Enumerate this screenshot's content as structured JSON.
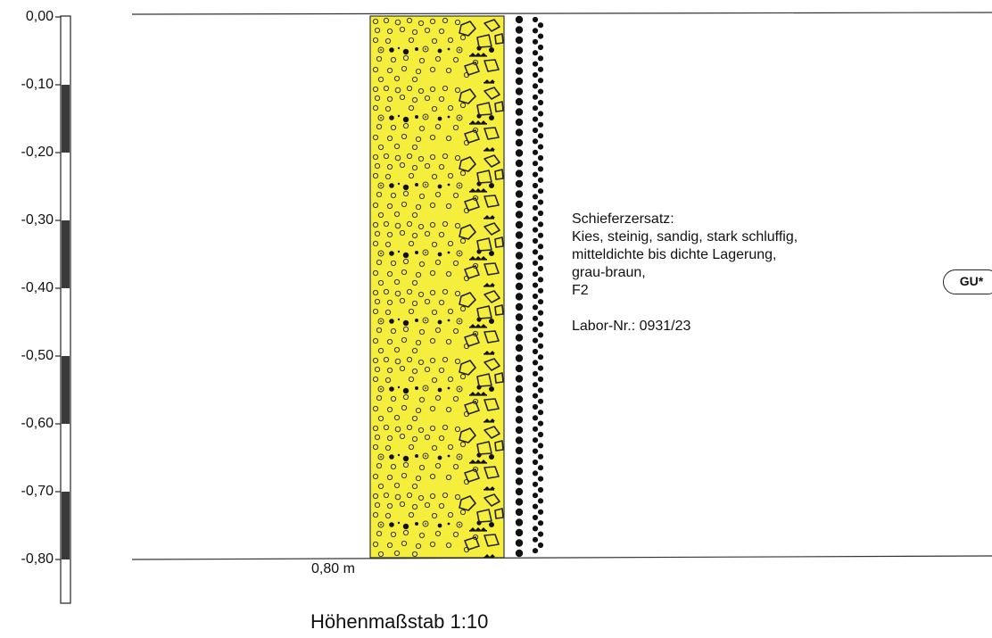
{
  "depth_scale": {
    "ticks": [
      "0,00",
      "-0,10",
      "-0,20",
      "-0,30",
      "-0,40",
      "-0,50",
      "-0,60",
      "-0,70",
      "-0,80"
    ]
  },
  "layer": {
    "depth_label": "0,80 m",
    "description": [
      "Schieferzersatz:",
      "Kies, steinig, sandig, stark schluffig,",
      "mitteldichte bis dichte Lagerung,",
      "grau-braun,",
      "F2",
      "",
      "Labor-Nr.: 0931/23"
    ],
    "soil_class": "GU*",
    "fill_color": "#f6ee3c"
  },
  "footer": {
    "scale": "Höhenmaßstab 1:10"
  }
}
